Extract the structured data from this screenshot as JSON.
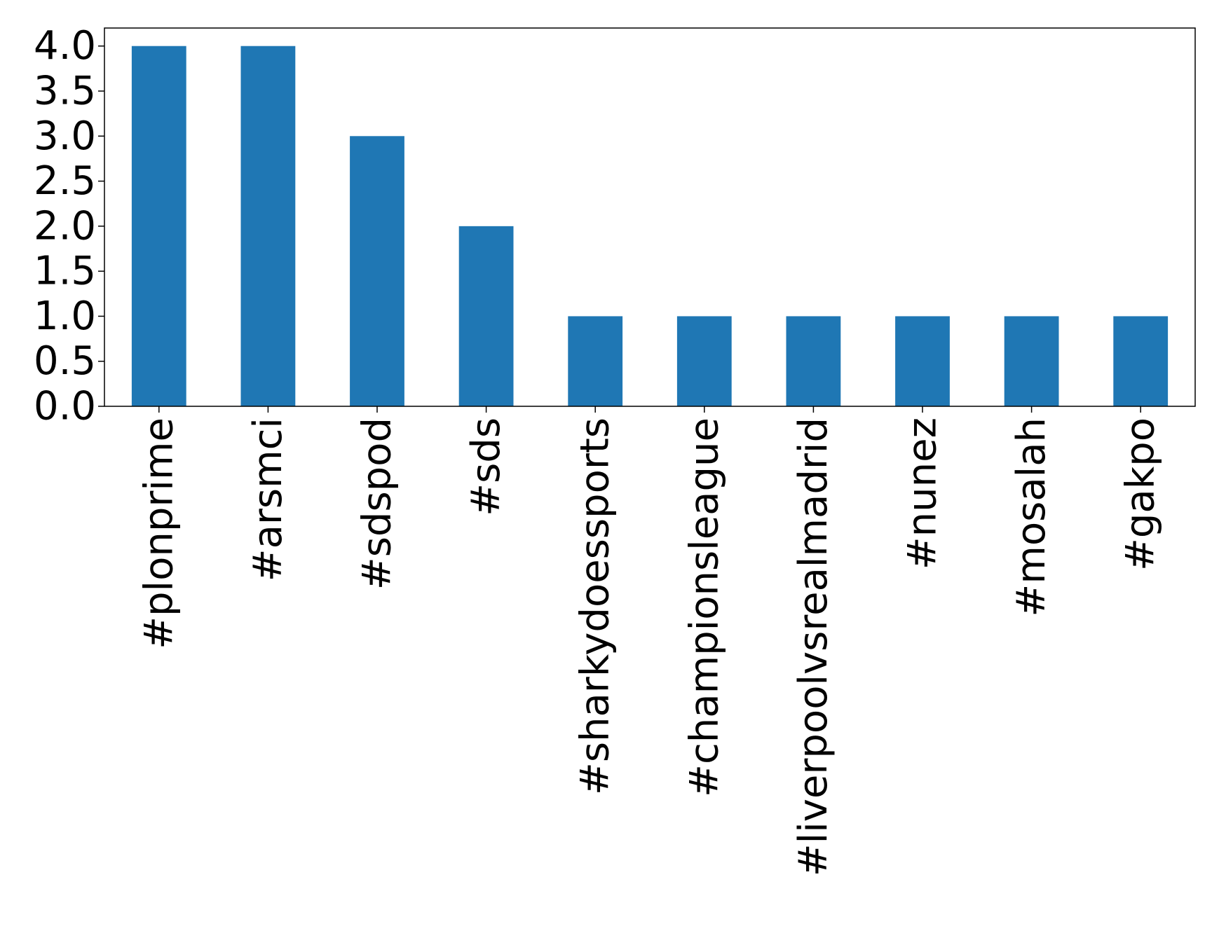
{
  "chart_data": {
    "type": "bar",
    "title": "",
    "xlabel": "",
    "ylabel": "",
    "categories": [
      "#plonprime",
      "#arsmci",
      "#sdspod",
      "#sds",
      "#sharkydoessports",
      "#championsleague",
      "#liverpoolvsrealmadrid",
      "#nunez",
      "#mosalah",
      "#gakpo"
    ],
    "values": [
      4,
      4,
      3,
      2,
      1,
      1,
      1,
      1,
      1,
      1
    ],
    "ylim": [
      0,
      4.2
    ],
    "yticks": [
      "0.0",
      "0.5",
      "1.0",
      "1.5",
      "2.0",
      "2.5",
      "3.0",
      "3.5",
      "4.0"
    ],
    "bar_color": "#1f77b4",
    "grid": false,
    "legend": false
  }
}
